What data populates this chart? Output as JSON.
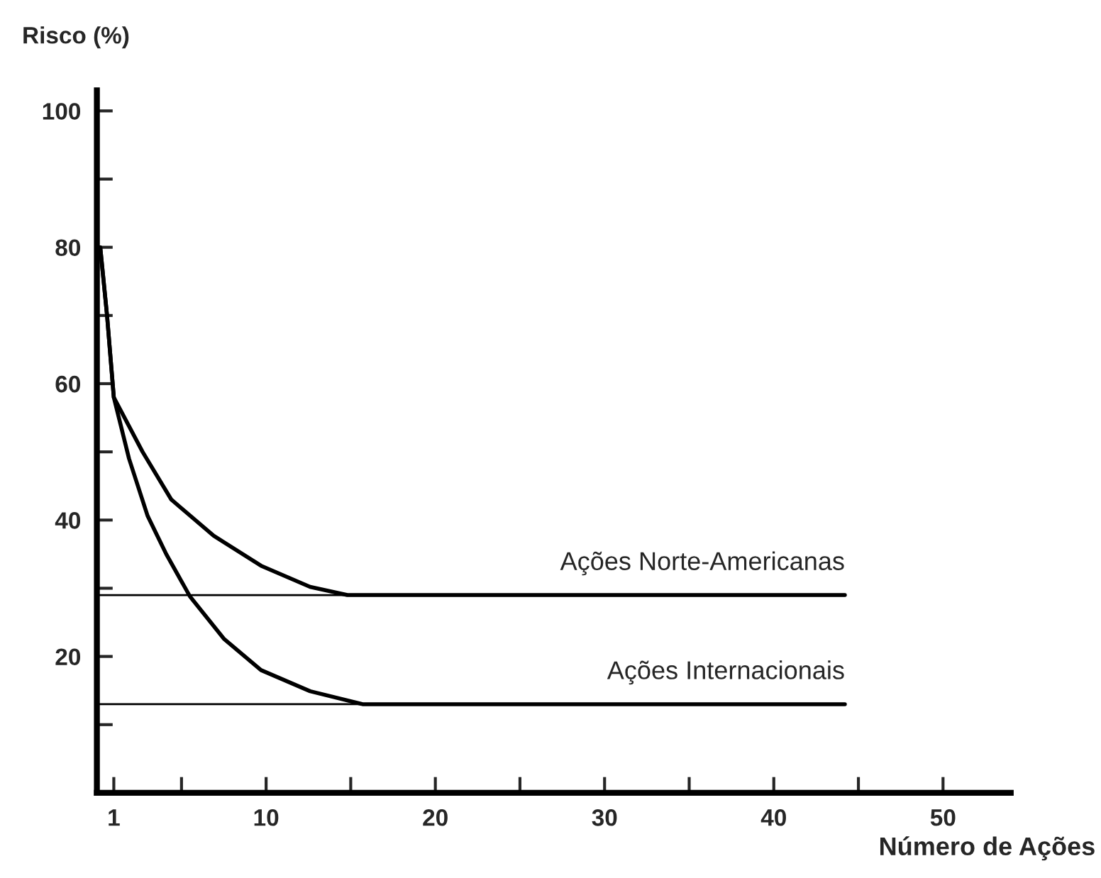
{
  "chart_data": {
    "type": "line",
    "ylabel": "Risco (%)",
    "xlabel": "Número de Ações",
    "xlim": [
      0,
      54
    ],
    "ylim": [
      0,
      103
    ],
    "xticks": [
      1,
      {
        "value": 5,
        "label": null
      },
      10,
      {
        "value": 15,
        "label": null
      },
      20,
      {
        "value": 25,
        "label": null
      },
      30,
      {
        "value": 35,
        "label": null
      },
      40,
      {
        "value": 45,
        "label": null
      },
      50
    ],
    "yticks": [
      {
        "value": 10,
        "label": null
      },
      20,
      {
        "value": 30,
        "label": null
      },
      40,
      {
        "value": 50,
        "label": null
      },
      60,
      {
        "value": 70,
        "label": null
      },
      80,
      {
        "value": 90,
        "label": null
      },
      100
    ],
    "grid": false,
    "legend": false,
    "series": [
      {
        "name": "Ações Norte-Americanas",
        "color": "#000000",
        "x": [
          0.2,
          0.6,
          1,
          2.7,
          4.4,
          6.9,
          9.7,
          12.6,
          14.8,
          44.2
        ],
        "values": [
          80,
          70,
          58,
          50,
          43,
          37.7,
          33.3,
          30.2,
          29,
          29
        ]
      },
      {
        "name": "Ações Internacionais",
        "color": "#000000",
        "x": [
          0.2,
          0.6,
          1,
          1.9,
          3,
          4.1,
          5.5,
          7.5,
          9.7,
          12.6,
          15.7,
          44.2
        ],
        "values": [
          80,
          70,
          58,
          49,
          40.6,
          35,
          28.8,
          22.6,
          18,
          14.9,
          13,
          13
        ]
      },
      {
        "color": "#000000",
        "x": [
          0,
          14.8
        ],
        "values": [
          29,
          29
        ]
      },
      {
        "color": "#000000",
        "x": [
          0,
          15.7
        ],
        "values": [
          13,
          13
        ]
      }
    ]
  }
}
